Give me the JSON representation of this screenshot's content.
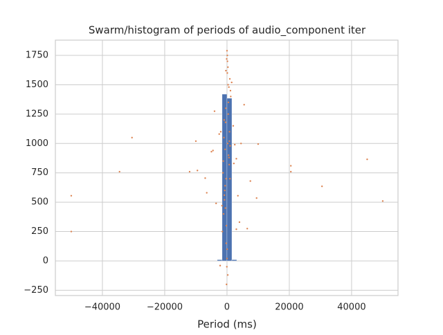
{
  "chart_data": [
    {
      "type": "histogram",
      "title": "Swarm/histogram of periods of audio_component iter",
      "xlabel": "Period (ms)",
      "xlim": [
        -55100,
        54900
      ],
      "ylim": [
        -295,
        1880
      ],
      "xticks": [
        {
          "value": -40000,
          "label": "−40000"
        },
        {
          "value": -20000,
          "label": "−20000"
        },
        0,
        20000,
        40000
      ],
      "yticks": [
        {
          "value": -250,
          "label": "−250"
        },
        0,
        250,
        500,
        750,
        1000,
        1250,
        1500,
        1750
      ],
      "grid": true,
      "color": "#4c72b0",
      "bins": [
        -50000,
        -48437.5,
        -46875,
        -45312.5,
        -43750,
        -42187.5,
        -40625,
        -39062.5,
        -37500,
        -35937.5,
        -34375,
        -32812.5,
        -31250,
        -29687.5,
        -28125,
        -26562.5,
        -25000,
        -23437.5,
        -21875,
        -20312.5,
        -18750,
        -17187.5,
        -15625,
        -14062.5,
        -12500,
        -10937.5,
        -9375,
        -7812.5,
        -6250,
        -4687.5,
        -3125,
        -1562.5,
        0,
        1562.5,
        3125,
        4687.5,
        6250,
        7812.5,
        9375,
        10937.5,
        12500,
        14062.5,
        15625,
        17187.5,
        18750,
        20312.5,
        21875,
        23437.5,
        25000,
        26562.5,
        28125,
        29687.5,
        31250,
        32812.5,
        34375,
        35937.5,
        37500,
        39062.5,
        40625,
        42187.5,
        43750,
        45312.5,
        46875,
        48437.5,
        50000
      ],
      "counts": [
        0,
        0,
        0,
        0,
        0,
        0,
        0,
        0,
        0,
        0,
        0,
        0,
        0,
        0,
        0,
        0,
        0,
        0,
        0,
        0,
        0,
        0,
        0,
        0,
        0,
        0,
        0,
        0,
        0,
        0,
        10,
        1420,
        1385,
        10,
        0,
        0,
        0,
        0,
        0,
        0,
        0,
        0,
        0,
        0,
        0,
        0,
        0,
        0,
        0,
        0,
        0,
        0,
        0,
        0,
        0,
        0,
        0,
        0,
        0,
        0,
        0,
        0,
        0,
        0
      ]
    },
    {
      "type": "scatter",
      "color": "#dd8452",
      "x": [
        -50000,
        -50000,
        -30500,
        -34500,
        -12000,
        -10000,
        -9500,
        -7000,
        -6500,
        -5000,
        -4000,
        -3500,
        -2500,
        20500,
        20500,
        30500,
        45000,
        50000,
        10000,
        9500,
        7500,
        6500,
        5500,
        4000,
        3500,
        3000,
        2500,
        2000,
        -2000,
        -1500,
        -1200,
        -900,
        -600,
        -300,
        0,
        300,
        600,
        900,
        1200,
        -1100,
        -700,
        -400,
        -100,
        200,
        500,
        800,
        1100,
        -1300,
        -800,
        -500,
        -200,
        100,
        400,
        700,
        1000,
        -1000,
        -600,
        -250,
        50,
        350,
        650,
        950,
        -850,
        -450,
        150,
        450,
        750,
        -150,
        250,
        -50,
        0,
        100,
        -350,
        -1600,
        1500,
        -2200,
        2200,
        4500,
        -4500,
        3000
      ],
      "y": [
        555,
        250,
        1050,
        760,
        760,
        1020,
        770,
        705,
        580,
        930,
        1275,
        490,
        1080,
        810,
        760,
        635,
        865,
        510,
        995,
        535,
        680,
        275,
        1330,
        330,
        555,
        270,
        990,
        1150,
        1100,
        250,
        850,
        1200,
        950,
        700,
        1790,
        1650,
        1480,
        1550,
        1400,
        400,
        600,
        1300,
        1720,
        1000,
        900,
        1100,
        1450,
        750,
        520,
        450,
        300,
        1600,
        1250,
        820,
        980,
        1050,
        640,
        150,
        100,
        1500,
        880,
        700,
        560,
        1180,
        1700,
        1350,
        1020,
        -200,
        -120,
        -50,
        20,
        1750,
        1620,
        470,
        1520,
        -40,
        830,
        1000,
        940,
        870
      ]
    }
  ]
}
